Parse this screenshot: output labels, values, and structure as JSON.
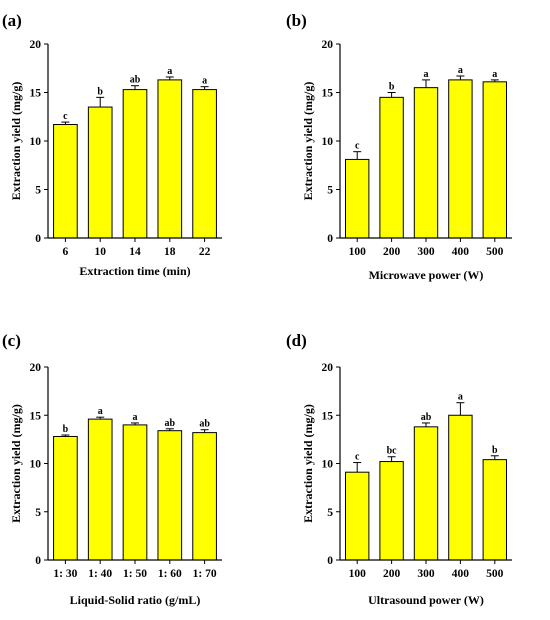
{
  "chart_data": [
    {
      "type": "bar",
      "panel": "(a)",
      "categories": [
        "6",
        "10",
        "14",
        "18",
        "22"
      ],
      "values": [
        11.7,
        13.5,
        15.3,
        16.3,
        15.3
      ],
      "errors": [
        0.25,
        1.0,
        0.4,
        0.3,
        0.3
      ],
      "significance": [
        "c",
        "b",
        "ab",
        "a",
        "a"
      ],
      "xlabel": "Extraction time (min)",
      "ylabel": "Extraction yield (mg/g)",
      "ylim": [
        0,
        20
      ],
      "yticks": [
        "0",
        "5",
        "10",
        "15",
        "20"
      ],
      "bar_color": "#ffff00",
      "grid": false
    },
    {
      "type": "bar",
      "panel": "(b)",
      "categories": [
        "100",
        "200",
        "300",
        "400",
        "500"
      ],
      "values": [
        8.1,
        14.5,
        15.5,
        16.3,
        16.1
      ],
      "errors": [
        0.8,
        0.5,
        0.8,
        0.4,
        0.2
      ],
      "significance": [
        "c",
        "b",
        "a",
        "a",
        "a"
      ],
      "xlabel": "Microwave power (W)",
      "ylabel": "Extraction yield (mg/g)",
      "ylim": [
        0,
        20
      ],
      "yticks": [
        "0",
        "5",
        "10",
        "15",
        "20"
      ],
      "bar_color": "#ffff00",
      "grid": false
    },
    {
      "type": "bar",
      "panel": "(c)",
      "categories": [
        "1: 30",
        "1: 40",
        "1: 50",
        "1: 60",
        "1: 70"
      ],
      "values": [
        12.8,
        14.6,
        14.0,
        13.4,
        13.2
      ],
      "errors": [
        0.15,
        0.2,
        0.2,
        0.2,
        0.3
      ],
      "significance": [
        "b",
        "a",
        "a",
        "ab",
        "ab"
      ],
      "xlabel": "Liquid-Solid ratio (g/mL)",
      "ylabel": "Extraction yield (mg/g)",
      "ylim": [
        0,
        20
      ],
      "yticks": [
        "0",
        "5",
        "10",
        "15",
        "20"
      ],
      "bar_color": "#ffff00",
      "grid": false
    },
    {
      "type": "bar",
      "panel": "(d)",
      "categories": [
        "100",
        "200",
        "300",
        "400",
        "500"
      ],
      "values": [
        9.1,
        10.2,
        13.8,
        15.0,
        10.4
      ],
      "errors": [
        1.0,
        0.5,
        0.4,
        1.3,
        0.4
      ],
      "significance": [
        "c",
        "bc",
        "ab",
        "a",
        "b"
      ],
      "xlabel": "Ultrasound power  (W)",
      "ylabel": "Extraction yield (mg/g)",
      "ylim": [
        0,
        20
      ],
      "yticks": [
        "0",
        "5",
        "10",
        "15",
        "20"
      ],
      "bar_color": "#ffff00",
      "grid": false
    }
  ]
}
